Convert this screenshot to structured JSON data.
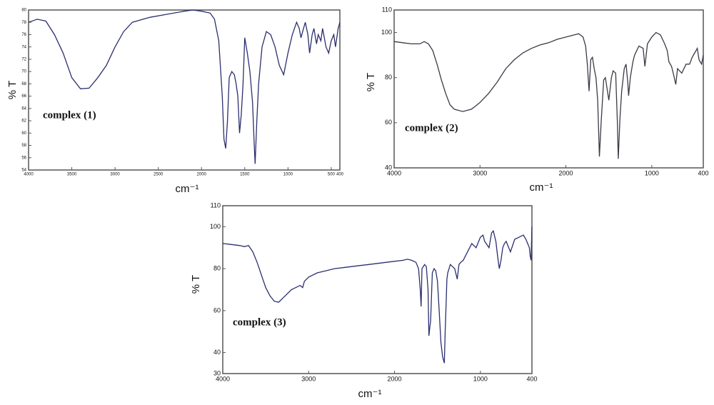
{
  "chart_data": [
    {
      "type": "line",
      "annotation": "complex (1)",
      "ylabel": "% T",
      "xlabel": "cm⁻¹",
      "color": "#2b2f6e",
      "x": [
        4000,
        3900,
        3800,
        3700,
        3600,
        3500,
        3400,
        3300,
        3200,
        3100,
        3000,
        2900,
        2800,
        2600,
        2400,
        2200,
        2100,
        2000,
        1900,
        1850,
        1800,
        1760,
        1740,
        1720,
        1700,
        1680,
        1650,
        1620,
        1600,
        1580,
        1560,
        1540,
        1520,
        1500,
        1470,
        1440,
        1410,
        1390,
        1380,
        1360,
        1340,
        1300,
        1250,
        1200,
        1150,
        1100,
        1050,
        1000,
        950,
        900,
        870,
        850,
        820,
        800,
        770,
        750,
        720,
        700,
        670,
        650,
        620,
        600,
        560,
        530,
        500,
        470,
        450,
        420,
        400
      ],
      "values": [
        78,
        78.5,
        78.2,
        76,
        73,
        69,
        67.2,
        67.3,
        69,
        71,
        74,
        76.5,
        78,
        78.8,
        79.3,
        79.8,
        80,
        79.8,
        79.5,
        78.5,
        75,
        66,
        59,
        57.5,
        62,
        69,
        70,
        69.5,
        68,
        66,
        60,
        63,
        68,
        75.5,
        73,
        70,
        65,
        58,
        55,
        62,
        68,
        74,
        76.5,
        76,
        74,
        71,
        69.5,
        73,
        76,
        78,
        77,
        75.5,
        77,
        78,
        76,
        73,
        76,
        77,
        74.5,
        76,
        75,
        77,
        74,
        73,
        75,
        76,
        74,
        77,
        78
      ],
      "xlim": [
        4000,
        400
      ],
      "ylim": [
        54,
        80
      ],
      "xticks": [
        4000,
        3500,
        3000,
        2500,
        2000,
        1500,
        1000,
        500,
        400
      ],
      "yticks": [
        54,
        56,
        58,
        60,
        62,
        64,
        66,
        68,
        70,
        72,
        74,
        76,
        78,
        80
      ]
    },
    {
      "type": "line",
      "annotation": "complex (2)",
      "ylabel": "% T",
      "xlabel": "cm⁻¹",
      "color": "#3a3a46",
      "x": [
        4000,
        3900,
        3800,
        3700,
        3650,
        3600,
        3550,
        3500,
        3450,
        3400,
        3350,
        3300,
        3250,
        3200,
        3150,
        3100,
        3050,
        3000,
        2900,
        2800,
        2700,
        2600,
        2500,
        2400,
        2300,
        2200,
        2100,
        2000,
        1900,
        1850,
        1800,
        1770,
        1750,
        1730,
        1710,
        1690,
        1670,
        1650,
        1630,
        1610,
        1590,
        1560,
        1540,
        1520,
        1500,
        1470,
        1450,
        1420,
        1400,
        1390,
        1370,
        1350,
        1320,
        1300,
        1280,
        1270,
        1250,
        1220,
        1200,
        1150,
        1100,
        1080,
        1050,
        1000,
        950,
        900,
        850,
        820,
        800,
        770,
        750,
        720,
        700,
        650,
        600,
        560,
        530,
        500,
        470,
        450,
        420,
        400
      ],
      "values": [
        96,
        95.5,
        95,
        95,
        96,
        95,
        92,
        86,
        79,
        73,
        68,
        66,
        65.5,
        65,
        65.5,
        66,
        67.5,
        69,
        73,
        78,
        84,
        88,
        91,
        93,
        94.5,
        95.5,
        97,
        98,
        99,
        99.5,
        98,
        94,
        86,
        74,
        88,
        89,
        84,
        80,
        70,
        45,
        60,
        79,
        80,
        75,
        70,
        80,
        83,
        82,
        60,
        44,
        62,
        74,
        84,
        86,
        78,
        72,
        80,
        87,
        90,
        94,
        93,
        85,
        95,
        98,
        100,
        99,
        95,
        92,
        87,
        85,
        82,
        77,
        84,
        82,
        86,
        86,
        89,
        91,
        93,
        88,
        86,
        90
      ],
      "xlim": [
        4000,
        400
      ],
      "ylim": [
        40,
        110
      ],
      "xticks": [
        4000,
        3000,
        2000,
        1000,
        400
      ],
      "yticks": [
        40,
        60,
        80,
        100,
        110
      ]
    },
    {
      "type": "line",
      "annotation": "complex (3)",
      "ylabel": "% T",
      "xlabel": "cm⁻¹",
      "color": "#2b2f6e",
      "x": [
        4000,
        3900,
        3800,
        3750,
        3700,
        3650,
        3600,
        3550,
        3500,
        3450,
        3400,
        3350,
        3300,
        3200,
        3100,
        3070,
        3050,
        3000,
        2900,
        2800,
        2700,
        2600,
        2500,
        2400,
        2300,
        2200,
        2100,
        2000,
        1900,
        1850,
        1800,
        1750,
        1720,
        1700,
        1690,
        1680,
        1650,
        1630,
        1610,
        1600,
        1590,
        1580,
        1560,
        1540,
        1520,
        1500,
        1480,
        1460,
        1440,
        1420,
        1410,
        1400,
        1390,
        1380,
        1350,
        1300,
        1270,
        1250,
        1230,
        1200,
        1150,
        1100,
        1050,
        1000,
        970,
        950,
        900,
        870,
        850,
        820,
        800,
        780,
        760,
        740,
        720,
        700,
        650,
        600,
        550,
        500,
        470,
        450,
        430,
        420,
        410,
        400
      ],
      "values": [
        92,
        91.5,
        91,
        90.5,
        91,
        88,
        83,
        77,
        71,
        67,
        64.5,
        64,
        66,
        70,
        72,
        71,
        74,
        76,
        78,
        79,
        80,
        80.5,
        81,
        81.5,
        82,
        82.5,
        83,
        83.5,
        84,
        84.5,
        84,
        83,
        80,
        70,
        62,
        80,
        82,
        81,
        70,
        48,
        52,
        55,
        78,
        80,
        79,
        74,
        60,
        45,
        38,
        35,
        50,
        62,
        75,
        78,
        82,
        80,
        75,
        82,
        83,
        84,
        88,
        92,
        90,
        95,
        96,
        93,
        90,
        97,
        98,
        93,
        86,
        80,
        84,
        90,
        92,
        93,
        88,
        94,
        95,
        96,
        94,
        92,
        90,
        86,
        84,
        100
      ],
      "xlim": [
        4000,
        400
      ],
      "ylim": [
        30,
        110
      ],
      "xticks": [
        4000,
        3000,
        2000,
        1000,
        400
      ],
      "yticks": [
        30,
        40,
        60,
        80,
        100,
        110
      ]
    }
  ]
}
